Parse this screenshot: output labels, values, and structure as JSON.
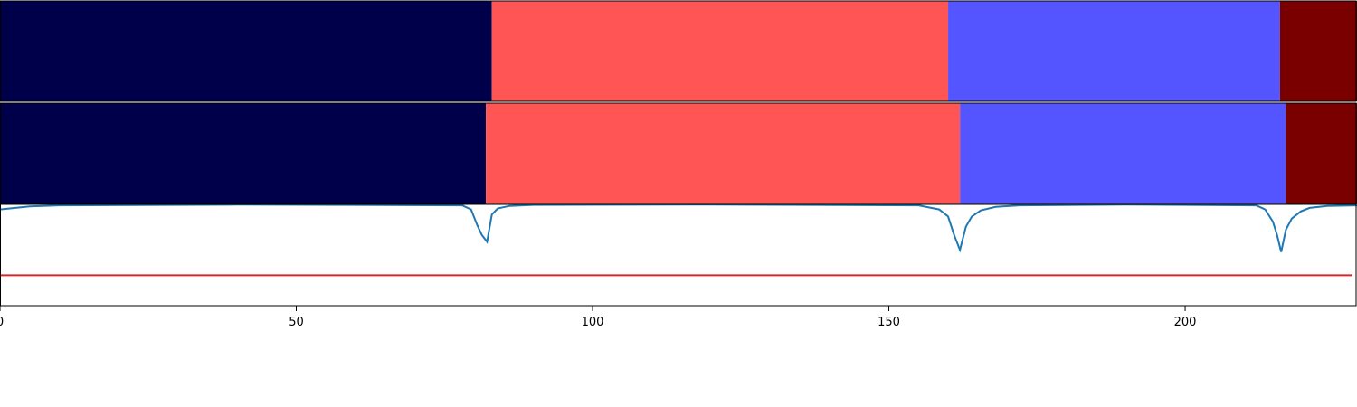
{
  "chart_data": {
    "type": "segmentation-comparison",
    "xlim": [
      0,
      229
    ],
    "xticks": [
      0,
      50,
      100,
      150,
      200
    ],
    "grid": false,
    "legend": "none",
    "panels": [
      {
        "type": "segments",
        "segments": [
          {
            "start": 0,
            "end": 83,
            "color": "#00004a"
          },
          {
            "start": 83,
            "end": 160,
            "color": "#ff5555"
          },
          {
            "start": 160,
            "end": 216,
            "color": "#5555ff"
          },
          {
            "start": 216,
            "end": 229,
            "color": "#7a0000"
          }
        ]
      },
      {
        "type": "segments",
        "segments": [
          {
            "start": 0,
            "end": 82,
            "color": "#00004a"
          },
          {
            "start": 82,
            "end": 162,
            "color": "#ff5555"
          },
          {
            "start": 162,
            "end": 217,
            "color": "#5555ff"
          },
          {
            "start": 217,
            "end": 229,
            "color": "#7a0000"
          }
        ]
      },
      {
        "type": "line",
        "ylim": [
          0,
          1
        ],
        "threshold": {
          "value": 0.3,
          "color": "#d62728"
        },
        "series_color": "#1f77b4",
        "points": [
          [
            0,
            0.95
          ],
          [
            5,
            0.98
          ],
          [
            10,
            0.99
          ],
          [
            40,
            0.997
          ],
          [
            78,
            0.99
          ],
          [
            79.5,
            0.95
          ],
          [
            80.5,
            0.8
          ],
          [
            81.3,
            0.7
          ],
          [
            82.2,
            0.63
          ],
          [
            83,
            0.9
          ],
          [
            84,
            0.96
          ],
          [
            86,
            0.985
          ],
          [
            90,
            0.995
          ],
          [
            120,
            0.998
          ],
          [
            155,
            0.99
          ],
          [
            158.5,
            0.95
          ],
          [
            160,
            0.88
          ],
          [
            161,
            0.7
          ],
          [
            162,
            0.55
          ],
          [
            163,
            0.78
          ],
          [
            164,
            0.88
          ],
          [
            165.5,
            0.94
          ],
          [
            168,
            0.975
          ],
          [
            172,
            0.99
          ],
          [
            190,
            0.998
          ],
          [
            212,
            0.99
          ],
          [
            213.5,
            0.95
          ],
          [
            214.8,
            0.83
          ],
          [
            215.5,
            0.7
          ],
          [
            216.2,
            0.53
          ],
          [
            217,
            0.75
          ],
          [
            218,
            0.86
          ],
          [
            219.5,
            0.93
          ],
          [
            221,
            0.965
          ],
          [
            224,
            0.985
          ],
          [
            229,
            0.99
          ]
        ]
      }
    ]
  }
}
